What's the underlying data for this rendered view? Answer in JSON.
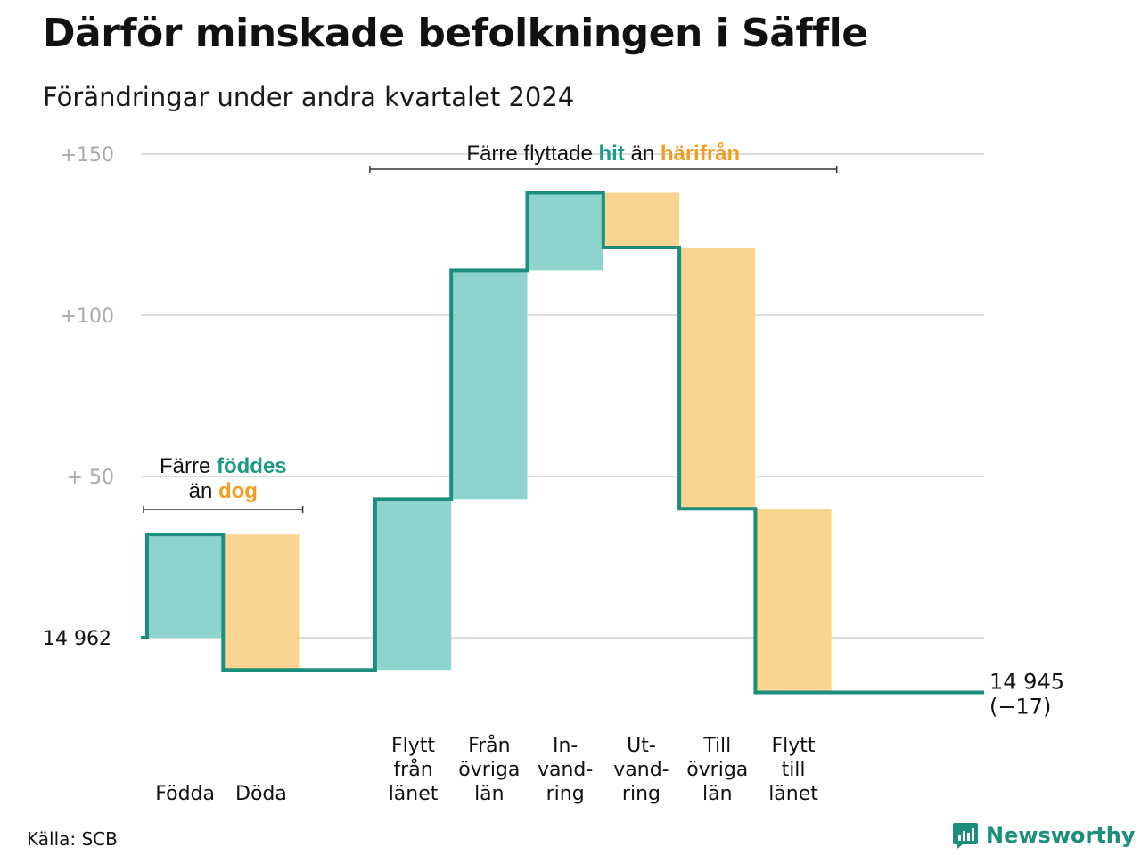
{
  "header": {
    "title": "Därför minskade befolkningen i Säffle",
    "subtitle": "Förändringar under andra kvartalet 2024"
  },
  "footer": {
    "source": "Källa: SCB",
    "brand": "Newsworthy"
  },
  "colors": {
    "increase": "#8dd5cc",
    "decrease": "#fad58f",
    "line": "#1b8e7e",
    "accent_teal": "#1b9a88",
    "accent_orange": "#f39c1f",
    "grid": "#dddddd",
    "tick": "#aaaaaa"
  },
  "chart_data": {
    "type": "waterfall",
    "baseline": 14962,
    "baseline_label": "14  962",
    "y_ticks": [
      {
        "value": 150,
        "label": "+150"
      },
      {
        "value": 100,
        "label": "+100"
      },
      {
        "value": 50,
        "label": "+  50"
      },
      {
        "value": 0,
        "label": ""
      }
    ],
    "steps": [
      {
        "lines": [
          "Födda"
        ],
        "delta": 32,
        "kind": "increase"
      },
      {
        "lines": [
          "Döda"
        ],
        "delta": -42,
        "kind": "decrease"
      },
      {
        "lines": [],
        "delta": 0,
        "kind": "gap"
      },
      {
        "lines": [
          "Flytt",
          "från",
          "länet"
        ],
        "delta": 53,
        "kind": "increase"
      },
      {
        "lines": [
          "Från",
          "övriga",
          "län"
        ],
        "delta": 71,
        "kind": "increase"
      },
      {
        "lines": [
          "In-",
          "vand-",
          "ring"
        ],
        "delta": 24,
        "kind": "increase"
      },
      {
        "lines": [
          "Ut-",
          "vand-",
          "ring"
        ],
        "delta": -17,
        "kind": "decrease"
      },
      {
        "lines": [
          "Till",
          "övriga",
          "län"
        ],
        "delta": -81,
        "kind": "decrease"
      },
      {
        "lines": [
          "Flytt",
          "till",
          "länet"
        ],
        "delta": -57,
        "kind": "decrease"
      }
    ],
    "end_value_label": "14 945",
    "end_change_label": "(−17)",
    "annotations": {
      "births": {
        "line1_prefix": "Färre ",
        "line1_highlight": "föddes",
        "line2_prefix": "än ",
        "line2_highlight": "dog"
      },
      "moves": {
        "prefix": "Färre flyttade ",
        "highlight1": "hit",
        "middle": " än ",
        "highlight2": "härifrån"
      }
    }
  }
}
